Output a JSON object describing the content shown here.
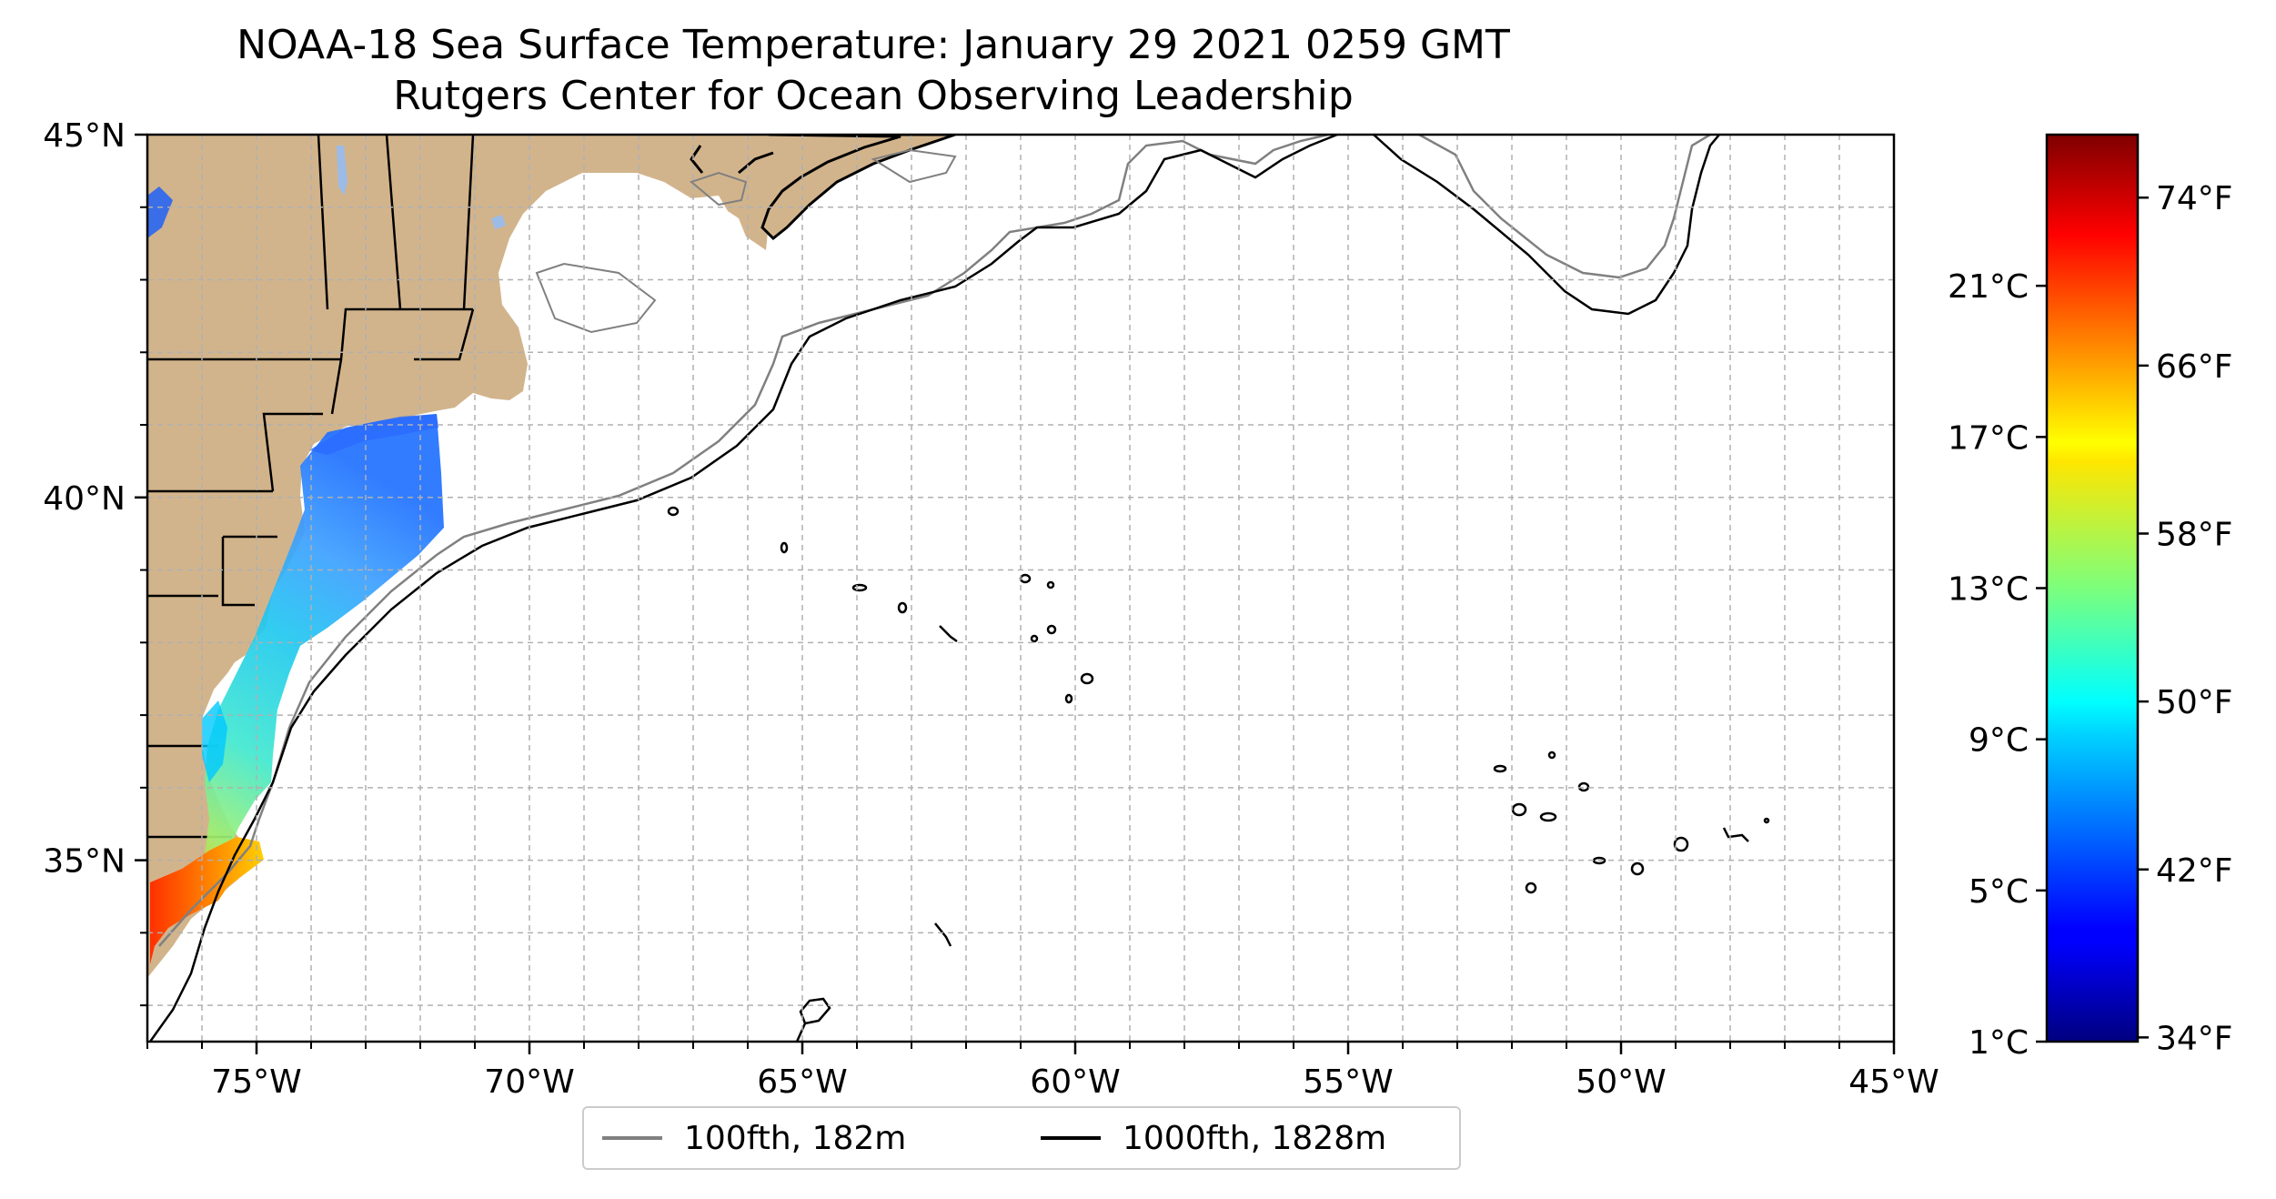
{
  "title": {
    "line1": "NOAA-18 Sea Surface Temperature: January 29 2021 0259 GMT",
    "line2": "Rutgers Center for Ocean Observing Leadership"
  },
  "map": {
    "lon_range": [
      -77,
      -45
    ],
    "lat_range": [
      32.5,
      45
    ],
    "x_ticks": [
      {
        "lon": -75,
        "label": "75°W"
      },
      {
        "lon": -70,
        "label": "70°W"
      },
      {
        "lon": -65,
        "label": "65°W"
      },
      {
        "lon": -60,
        "label": "60°W"
      },
      {
        "lon": -55,
        "label": "55°W"
      },
      {
        "lon": -50,
        "label": "50°W"
      },
      {
        "lon": -45,
        "label": "45°W"
      }
    ],
    "y_ticks": [
      {
        "lat": 45,
        "label": "45°N"
      },
      {
        "lat": 40,
        "label": "40°N"
      },
      {
        "lat": 35,
        "label": "35°N"
      }
    ],
    "gridlines": "dashed every 1 degree",
    "colors": {
      "land": "#d2b48c",
      "lakes": "#9cbbe6",
      "isobath_100fth": "#808080",
      "isobath_1000fth": "#000000",
      "grid": "#b0b0b0"
    }
  },
  "legend": {
    "items": [
      {
        "label": "100fth, 182m",
        "color": "#808080"
      },
      {
        "label": "1000fth, 1828m",
        "color": "#000000"
      }
    ]
  },
  "colorbar": {
    "colormap": "jet",
    "range_f": [
      33.8,
      77
    ],
    "celsius_ticks": [
      {
        "c": 1,
        "label": "1°C"
      },
      {
        "c": 5,
        "label": "5°C"
      },
      {
        "c": 9,
        "label": "9°C"
      },
      {
        "c": 13,
        "label": "13°C"
      },
      {
        "c": 17,
        "label": "17°C"
      },
      {
        "c": 21,
        "label": "21°C"
      }
    ],
    "fahrenheit_ticks": [
      {
        "f": 34,
        "label": "34°F"
      },
      {
        "f": 42,
        "label": "42°F"
      },
      {
        "f": 50,
        "label": "50°F"
      },
      {
        "f": 58,
        "label": "58°F"
      },
      {
        "f": 66,
        "label": "66°F"
      },
      {
        "f": 74,
        "label": "74°F"
      }
    ]
  }
}
